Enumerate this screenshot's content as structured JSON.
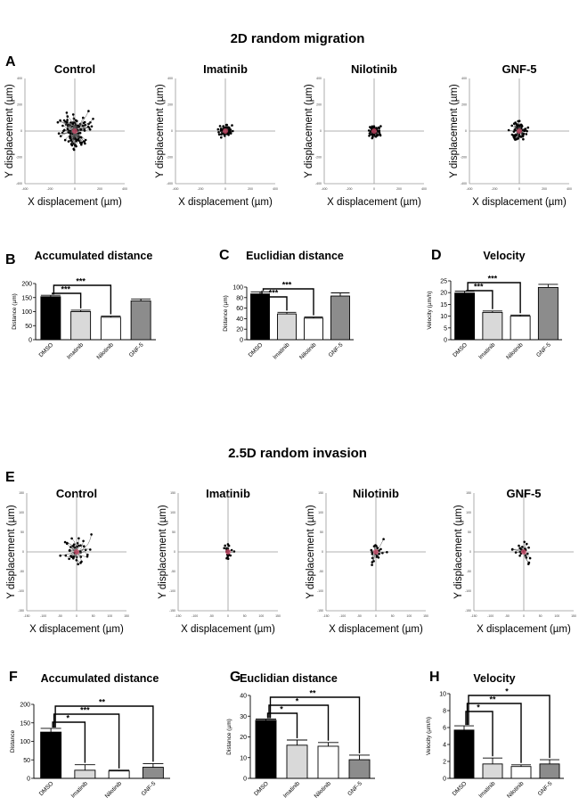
{
  "figure": {
    "section_2d_title": "2D random migration",
    "section_25d_title": "2.5D random invasion",
    "panel_letters": [
      "A",
      "B",
      "C",
      "D",
      "E",
      "F",
      "G",
      "H"
    ]
  },
  "colors": {
    "dmso": "#000000",
    "imatinib": "#d9d9d9",
    "nilotinib": "#ffffff",
    "gnf5": "#8c8c8c",
    "track": "#555555",
    "center": "#d04a6a"
  },
  "chart_data": [
    {
      "id": "A",
      "type": "scatter",
      "section": "2D random migration",
      "xlabel": "X displacement (µm)",
      "ylabel": "Y displacement (µm)",
      "ticks": [
        "-400",
        "-200",
        "0",
        "200",
        "400"
      ],
      "plots": [
        {
          "title": "Control",
          "spread": 0.32,
          "n": 110,
          "seed": 11
        },
        {
          "title": "Imatinib",
          "spread": 0.12,
          "n": 70,
          "seed": 23
        },
        {
          "title": "Nilotinib",
          "spread": 0.11,
          "n": 75,
          "seed": 37
        },
        {
          "title": "GNF-5",
          "spread": 0.17,
          "n": 70,
          "seed": 41
        }
      ]
    },
    {
      "id": "B",
      "type": "bar",
      "title": "Accumulated distance",
      "ylabel": "Distance (µm)",
      "categories": [
        "DMSO",
        "Imatinib",
        "Nilotinib",
        "GNF-5"
      ],
      "values": [
        153,
        100,
        80,
        138
      ],
      "errors": [
        5,
        5,
        4,
        7
      ],
      "ylim": [
        0,
        200
      ],
      "yticks": [
        "0",
        "50",
        "100",
        "150",
        "200"
      ],
      "sig": [
        {
          "to": 1,
          "label": "***"
        },
        {
          "to": 2,
          "label": "***"
        }
      ]
    },
    {
      "id": "C",
      "type": "bar",
      "title": "Euclidian distance",
      "ylabel": "Distance (µm)",
      "categories": [
        "DMSO",
        "Imatinib",
        "Nilotinib",
        "GNF-5"
      ],
      "values": [
        87,
        49,
        41,
        83
      ],
      "errors": [
        4,
        3,
        2,
        6
      ],
      "ylim": [
        0,
        100
      ],
      "yticks": [
        "0",
        "20",
        "40",
        "60",
        "80",
        "100"
      ],
      "sig": [
        {
          "to": 1,
          "label": "***"
        },
        {
          "to": 2,
          "label": "***"
        }
      ]
    },
    {
      "id": "D",
      "type": "bar",
      "title": "Velocity",
      "ylabel": "Velocity (µm/h)",
      "categories": [
        "DMSO",
        "Imatinib",
        "Nilotinib",
        "GNF-5"
      ],
      "values": [
        19.8,
        11.6,
        10.0,
        22.2
      ],
      "errors": [
        0.8,
        0.6,
        0.5,
        1.3
      ],
      "ylim": [
        0,
        25
      ],
      "yticks": [
        "0",
        "5",
        "10",
        "15",
        "20",
        "25"
      ],
      "sig": [
        {
          "to": 1,
          "label": "***"
        },
        {
          "to": 2,
          "label": "***"
        }
      ]
    },
    {
      "id": "E",
      "type": "scatter",
      "section": "2.5D random invasion",
      "xlabel": "X displacement (µm)",
      "ylabel": "Y displacement (µm)",
      "ticks": [
        "-150",
        "-100",
        "-50",
        "0",
        "50",
        "100",
        "150"
      ],
      "plots": [
        {
          "title": "Control",
          "spread": 0.3,
          "n": 40,
          "seed": 53
        },
        {
          "title": "Imatinib",
          "spread": 0.13,
          "n": 20,
          "seed": 67
        },
        {
          "title": "Nilotinib",
          "spread": 0.18,
          "n": 22,
          "seed": 71
        },
        {
          "title": "GNF-5",
          "spread": 0.2,
          "n": 22,
          "seed": 83
        }
      ]
    },
    {
      "id": "F",
      "type": "bar",
      "title": "Accumulated distance",
      "ylabel": "Distance",
      "categories": [
        "DMSO",
        "Imatinib",
        "Nilotinib",
        "GNF-5"
      ],
      "values": [
        125,
        22,
        20,
        30
      ],
      "errors": [
        10,
        15,
        2,
        10
      ],
      "ylim": [
        0,
        200
      ],
      "yticks": [
        "0",
        "50",
        "100",
        "150",
        "200"
      ],
      "sig": [
        {
          "to": 1,
          "label": "*"
        },
        {
          "to": 2,
          "label": "***"
        },
        {
          "to": 3,
          "label": "**"
        }
      ]
    },
    {
      "id": "G",
      "type": "bar",
      "title": "Euclidian distance",
      "ylabel": "Distance (µm)",
      "categories": [
        "DMSO",
        "Imatinib",
        "Nilotinib",
        "GNF-5"
      ],
      "values": [
        28,
        16,
        15.5,
        9
      ],
      "errors": [
        0.6,
        2.5,
        1.8,
        2.2
      ],
      "ylim": [
        0,
        40
      ],
      "yticks": [
        "0",
        "10",
        "20",
        "30",
        "40"
      ],
      "sig": [
        {
          "to": 1,
          "label": "*"
        },
        {
          "to": 2,
          "label": "*"
        },
        {
          "to": 3,
          "label": "**"
        }
      ]
    },
    {
      "id": "H",
      "type": "bar",
      "title": "Velocity",
      "ylabel": "Velocity (µm/h)",
      "categories": [
        "DMSO",
        "Imatinib",
        "Nilotinib",
        "GNF-5"
      ],
      "values": [
        5.7,
        1.7,
        1.4,
        1.7
      ],
      "errors": [
        0.5,
        0.7,
        0.2,
        0.5
      ],
      "ylim": [
        0,
        10
      ],
      "yticks": [
        "0",
        "2",
        "4",
        "6",
        "8",
        "10"
      ],
      "sig": [
        {
          "to": 1,
          "label": "*"
        },
        {
          "to": 2,
          "label": "**"
        },
        {
          "to": 3,
          "label": "*"
        }
      ]
    }
  ]
}
